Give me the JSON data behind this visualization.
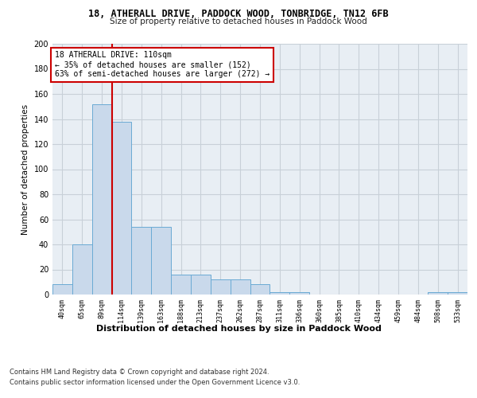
{
  "title": "18, ATHERALL DRIVE, PADDOCK WOOD, TONBRIDGE, TN12 6FB",
  "subtitle": "Size of property relative to detached houses in Paddock Wood",
  "xlabel": "Distribution of detached houses by size in Paddock Wood",
  "ylabel": "Number of detached properties",
  "bar_labels": [
    "40sqm",
    "65sqm",
    "89sqm",
    "114sqm",
    "139sqm",
    "163sqm",
    "188sqm",
    "213sqm",
    "237sqm",
    "262sqm",
    "287sqm",
    "311sqm",
    "336sqm",
    "360sqm",
    "385sqm",
    "410sqm",
    "434sqm",
    "459sqm",
    "484sqm",
    "508sqm",
    "533sqm"
  ],
  "bar_values": [
    8,
    40,
    152,
    138,
    54,
    54,
    16,
    16,
    12,
    12,
    8,
    2,
    2,
    0,
    0,
    0,
    0,
    0,
    0,
    2,
    2
  ],
  "bar_color": "#c9d9eb",
  "bar_edge_color": "#6aaad4",
  "property_line_color": "#cc0000",
  "annotation_text": "18 ATHERALL DRIVE: 110sqm\n← 35% of detached houses are smaller (152)\n63% of semi-detached houses are larger (272) →",
  "annotation_box_color": "#ffffff",
  "annotation_border_color": "#cc0000",
  "ylim": [
    0,
    200
  ],
  "yticks": [
    0,
    20,
    40,
    60,
    80,
    100,
    120,
    140,
    160,
    180,
    200
  ],
  "grid_color": "#c8d0d8",
  "background_color": "#e8eef4",
  "footer_line1": "Contains HM Land Registry data © Crown copyright and database right 2024.",
  "footer_line2": "Contains public sector information licensed under the Open Government Licence v3.0."
}
